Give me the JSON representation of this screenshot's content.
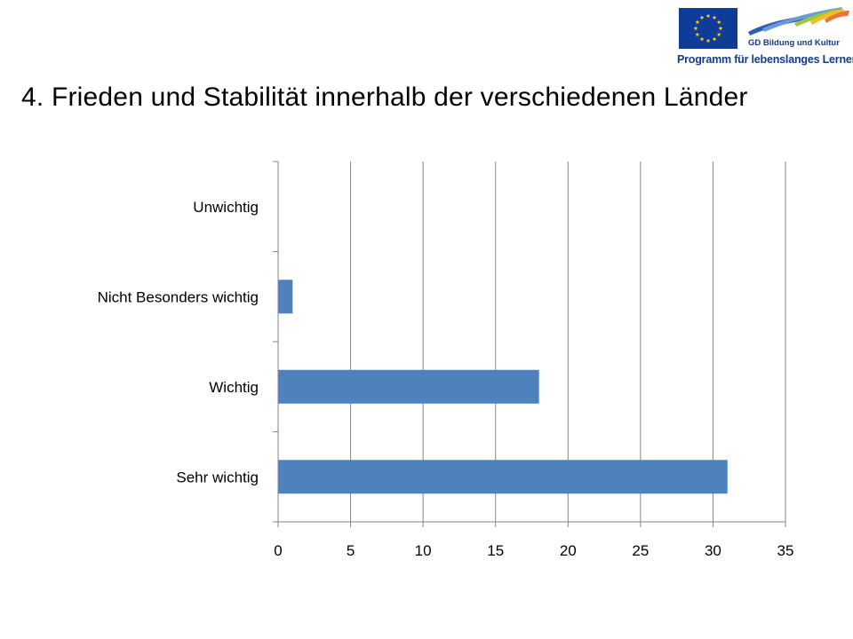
{
  "header": {
    "logo_line1": "GD Bildung und Kultur",
    "logo_line2": "Programm für lebenslanges Lernen",
    "brand_blue": "#0f3c99",
    "star_color": "#ffd700"
  },
  "slide": {
    "title": "4. Frieden und Stabilität innerhalb der verschiedenen Länder"
  },
  "chart_data": {
    "type": "bar",
    "orientation": "horizontal",
    "categories": [
      "Unwichtig",
      "Nicht Besonders wichtig",
      "Wichtig",
      "Sehr wichtig"
    ],
    "values": [
      0,
      1,
      18,
      31
    ],
    "xlim": [
      0,
      35
    ],
    "xticks": [
      0,
      5,
      10,
      15,
      20,
      25,
      30,
      35
    ],
    "grid": "vertical",
    "legend": "none",
    "bar_color": "#4f81bd",
    "title": "",
    "xlabel": "",
    "ylabel": ""
  }
}
